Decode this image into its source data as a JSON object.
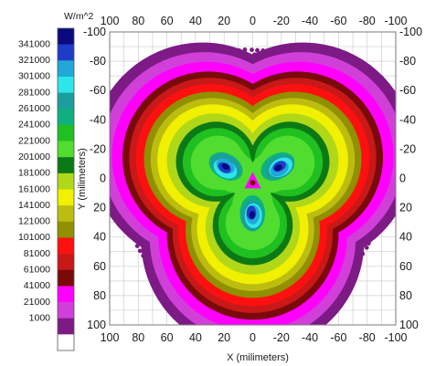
{
  "chart_data": {
    "type": "heatmap",
    "units": "W/m^2",
    "xlabel": "X (milimeters)",
    "ylabel": "Y (milimeters)",
    "xlim": [
      100,
      -100
    ],
    "ylim": [
      -100,
      100
    ],
    "x_ticks": [
      "100",
      "80",
      "60",
      "40",
      "20",
      "0",
      "-20",
      "-40",
      "-60",
      "-80",
      "-100"
    ],
    "y_ticks_left": [
      "-100",
      "-80",
      "-60",
      "-40",
      "-20",
      "0",
      "20",
      "40",
      "60",
      "80",
      "100"
    ],
    "y_ticks_right": [
      "-100",
      "-80",
      "-60",
      "-40",
      "-20",
      "0",
      "20",
      "40",
      "60",
      "80",
      "100"
    ],
    "grid": true,
    "colorbar": {
      "title": "W/m^2",
      "labels": [
        "341000",
        "321000",
        "301000",
        "281000",
        "261000",
        "241000",
        "221000",
        "201000",
        "181000",
        "161000",
        "141000",
        "121000",
        "101000",
        "81000",
        "61000",
        "41000",
        "21000",
        "1000"
      ],
      "colors": [
        "#0a0a80",
        "#1e3cc8",
        "#1fa8d8",
        "#2ee6ea",
        "#1a9e9e",
        "#0fb080",
        "#20c020",
        "#50dd30",
        "#0c7a14",
        "#b0d818",
        "#f0f000",
        "#bdbd10",
        "#909000",
        "#ff1010",
        "#c81818",
        "#7a0a0a",
        "#ff00ff",
        "#d040d8",
        "#7d1a86",
        "#ffffff"
      ]
    },
    "description_levels": {
      "core_lobes_peak": 301000,
      "lobe_rings": [
        241000,
        161000,
        101000,
        61000,
        21000
      ],
      "scattered_dots": 1000
    }
  }
}
